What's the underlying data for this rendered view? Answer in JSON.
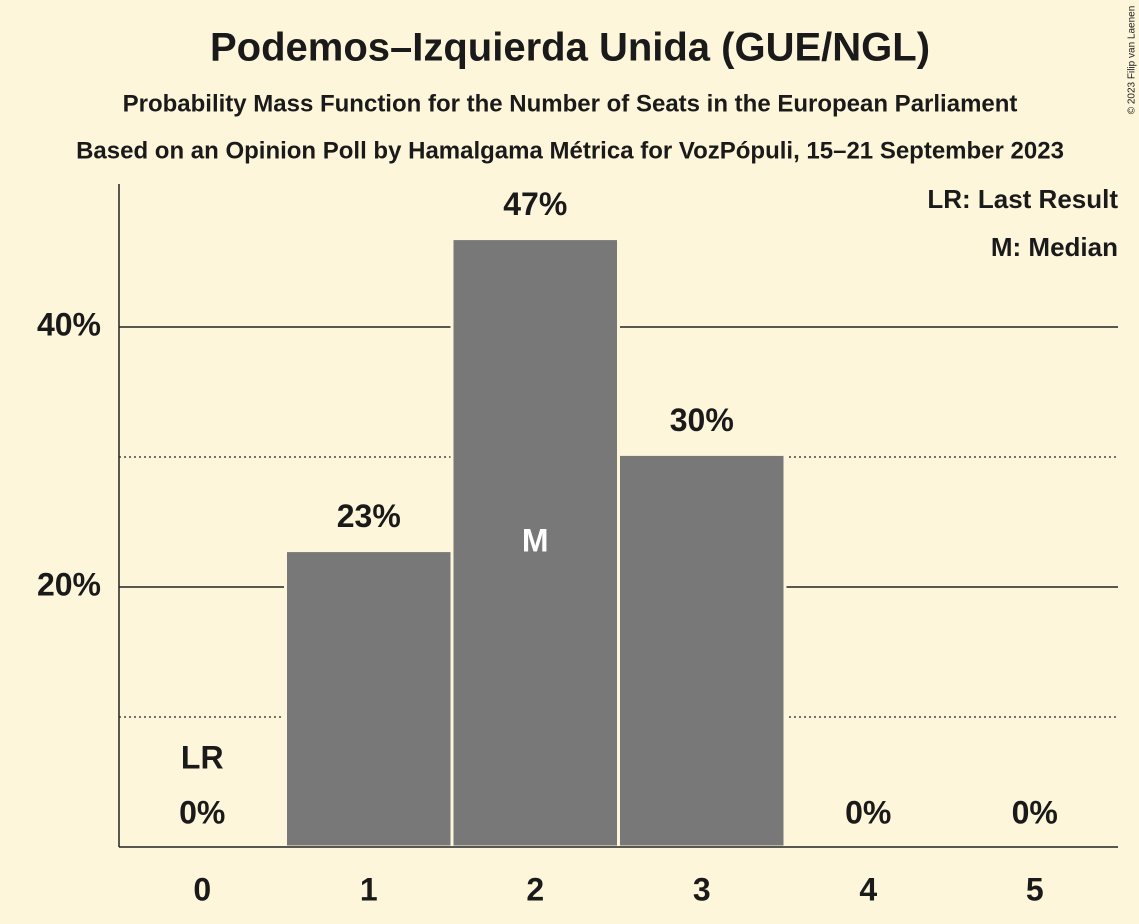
{
  "chart_data": {
    "type": "bar",
    "title": "Podemos–Izquierda Unida (GUE/NGL)",
    "subtitle": "Probability Mass Function for the Number of Seats in the European Parliament",
    "caption": "Based on an Opinion Poll by Hamalgama Métrica for VozPópuli, 15–21 September 2023",
    "categories": [
      "0",
      "1",
      "2",
      "3",
      "4",
      "5"
    ],
    "values": [
      0,
      22.8,
      46.8,
      30.2,
      0,
      0
    ],
    "value_labels": [
      "0%",
      "23%",
      "47%",
      "30%",
      "0%",
      "0%"
    ],
    "color": "#787878",
    "ylim": [
      0,
      51
    ],
    "yticks": [
      {
        "value": 20,
        "label": "20%"
      },
      {
        "value": 40,
        "label": "40%"
      }
    ],
    "minor_yticks": [
      10,
      30
    ],
    "grid": true,
    "last_result": {
      "category": 0,
      "label": "LR"
    },
    "median": {
      "category": 2,
      "label": "M"
    },
    "legend": [
      "LR: Last Result",
      "M: Median"
    ],
    "legend_position": "upper right",
    "copyright": "© 2023 Filip van Laenen"
  }
}
